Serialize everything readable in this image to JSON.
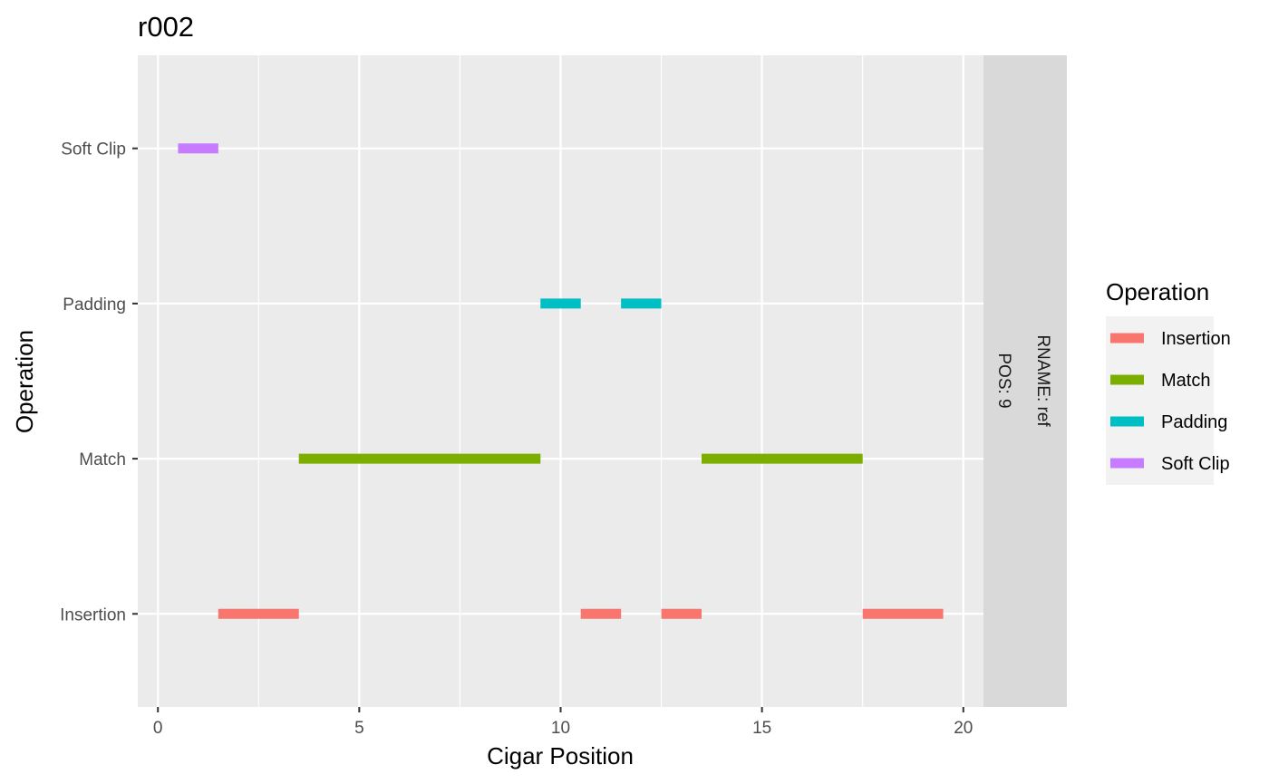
{
  "chart_data": {
    "type": "segment",
    "title": "r002",
    "xlabel": "Cigar Position",
    "ylabel": "Operation",
    "xlim": [
      -0.5,
      20.5
    ],
    "x_ticks": [
      0,
      5,
      10,
      15,
      20
    ],
    "x_tick_labels": [
      "0",
      "5",
      "10",
      "15",
      "20"
    ],
    "categories": [
      "Insertion",
      "Match",
      "Padding",
      "Soft Clip"
    ],
    "grid": true,
    "facet_strip": {
      "line1": "RNAME: ref",
      "line2": "POS: 9"
    },
    "legend": {
      "title": "Operation",
      "placement": "right",
      "entries": [
        {
          "label": "Insertion",
          "color": "#F8766D"
        },
        {
          "label": "Match",
          "color": "#7CAE00"
        },
        {
          "label": "Padding",
          "color": "#00BFC4"
        },
        {
          "label": "Soft Clip",
          "color": "#C77CFF"
        }
      ]
    },
    "segments": [
      {
        "operation": "Soft Clip",
        "start": 0.5,
        "end": 1.5
      },
      {
        "operation": "Insertion",
        "start": 1.5,
        "end": 3.5
      },
      {
        "operation": "Match",
        "start": 3.5,
        "end": 9.5
      },
      {
        "operation": "Padding",
        "start": 9.5,
        "end": 10.5
      },
      {
        "operation": "Insertion",
        "start": 10.5,
        "end": 11.5
      },
      {
        "operation": "Padding",
        "start": 11.5,
        "end": 12.5
      },
      {
        "operation": "Insertion",
        "start": 12.5,
        "end": 13.5
      },
      {
        "operation": "Match",
        "start": 13.5,
        "end": 17.5
      },
      {
        "operation": "Insertion",
        "start": 17.5,
        "end": 19.5
      }
    ]
  }
}
